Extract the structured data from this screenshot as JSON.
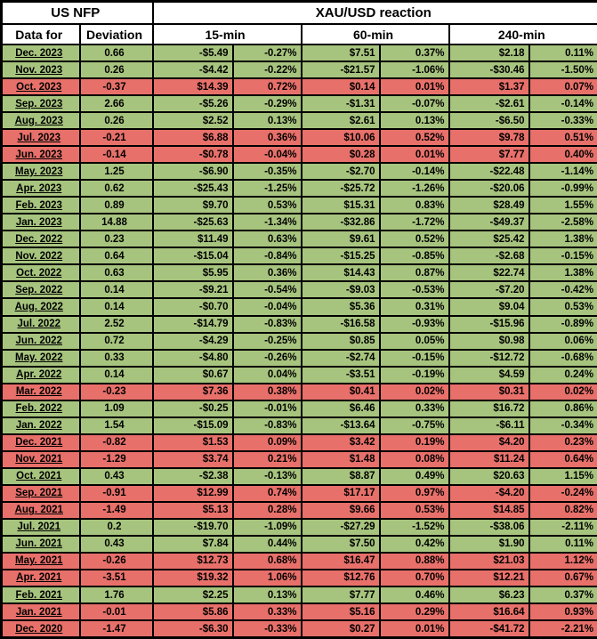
{
  "colors": {
    "positive_row": "#a7c47e",
    "negative_row": "#e8706a",
    "border": "#000000",
    "header_bg": "#ffffff",
    "text": "#000000"
  },
  "chart_data": {
    "type": "table",
    "title": "US NFP — XAU/USD reaction",
    "header": {
      "us_nfp": "US NFP",
      "reaction": "XAU/USD reaction",
      "data_for": "Data for",
      "deviation": "Deviation",
      "timeframes": [
        "15-min",
        "60-min",
        "240-min"
      ]
    },
    "row_color_rule": "negative deviation = red row, positive deviation = green row",
    "columns": [
      "Data for",
      "Deviation",
      "15-min $",
      "15-min %",
      "60-min $",
      "60-min %",
      "240-min $",
      "240-min %"
    ],
    "rows": [
      {
        "month": "Dec. 2023",
        "deviation": "0.66",
        "cells": [
          "-$5.49",
          "-0.27%",
          "$7.51",
          "0.37%",
          "$2.18",
          "0.11%"
        ]
      },
      {
        "month": "Nov. 2023",
        "deviation": "0.26",
        "cells": [
          "-$4.42",
          "-0.22%",
          "-$21.57",
          "-1.06%",
          "-$30.46",
          "-1.50%"
        ]
      },
      {
        "month": "Oct. 2023",
        "deviation": "-0.37",
        "cells": [
          "$14.39",
          "0.72%",
          "$0.14",
          "0.01%",
          "$1.37",
          "0.07%"
        ]
      },
      {
        "month": "Sep. 2023",
        "deviation": "2.66",
        "cells": [
          "-$5.26",
          "-0.29%",
          "-$1.31",
          "-0.07%",
          "-$2.61",
          "-0.14%"
        ]
      },
      {
        "month": "Aug. 2023",
        "deviation": "0.26",
        "cells": [
          "$2.52",
          "0.13%",
          "$2.61",
          "0.13%",
          "-$6.50",
          "-0.33%"
        ]
      },
      {
        "month": "Jul. 2023",
        "deviation": "-0.21",
        "cells": [
          "$6.88",
          "0.36%",
          "$10.06",
          "0.52%",
          "$9.78",
          "0.51%"
        ]
      },
      {
        "month": "Jun. 2023",
        "deviation": "-0.14",
        "cells": [
          "-$0.78",
          "-0.04%",
          "$0.28",
          "0.01%",
          "$7.77",
          "0.40%"
        ]
      },
      {
        "month": "May. 2023",
        "deviation": "1.25",
        "cells": [
          "-$6.90",
          "-0.35%",
          "-$2.70",
          "-0.14%",
          "-$22.48",
          "-1.14%"
        ]
      },
      {
        "month": "Apr. 2023",
        "deviation": "0.62",
        "cells": [
          "-$25.43",
          "-1.25%",
          "-$25.72",
          "-1.26%",
          "-$20.06",
          "-0.99%"
        ]
      },
      {
        "month": "Feb. 2023",
        "deviation": "0.89",
        "cells": [
          "$9.70",
          "0.53%",
          "$15.31",
          "0.83%",
          "$28.49",
          "1.55%"
        ]
      },
      {
        "month": "Jan. 2023",
        "deviation": "14.88",
        "cells": [
          "-$25.63",
          "-1.34%",
          "-$32.86",
          "-1.72%",
          "-$49.37",
          "-2.58%"
        ]
      },
      {
        "month": "Dec. 2022",
        "deviation": "0.23",
        "cells": [
          "$11.49",
          "0.63%",
          "$9.61",
          "0.52%",
          "$25.42",
          "1.38%"
        ]
      },
      {
        "month": "Nov. 2022",
        "deviation": "0.64",
        "cells": [
          "-$15.04",
          "-0.84%",
          "-$15.25",
          "-0.85%",
          "-$2.68",
          "-0.15%"
        ]
      },
      {
        "month": "Oct. 2022",
        "deviation": "0.63",
        "cells": [
          "$5.95",
          "0.36%",
          "$14.43",
          "0.87%",
          "$22.74",
          "1.38%"
        ]
      },
      {
        "month": "Sep. 2022",
        "deviation": "0.14",
        "cells": [
          "-$9.21",
          "-0.54%",
          "-$9.03",
          "-0.53%",
          "-$7.20",
          "-0.42%"
        ]
      },
      {
        "month": "Aug. 2022",
        "deviation": "0.14",
        "cells": [
          "-$0.70",
          "-0.04%",
          "$5.36",
          "0.31%",
          "$9.04",
          "0.53%"
        ]
      },
      {
        "month": "Jul. 2022",
        "deviation": "2.52",
        "cells": [
          "-$14.79",
          "-0.83%",
          "-$16.58",
          "-0.93%",
          "-$15.96",
          "-0.89%"
        ]
      },
      {
        "month": "Jun. 2022",
        "deviation": "0.72",
        "cells": [
          "-$4.29",
          "-0.25%",
          "$0.85",
          "0.05%",
          "$0.98",
          "0.06%"
        ]
      },
      {
        "month": "May. 2022",
        "deviation": "0.33",
        "cells": [
          "-$4.80",
          "-0.26%",
          "-$2.74",
          "-0.15%",
          "-$12.72",
          "-0.68%"
        ]
      },
      {
        "month": "Apr. 2022",
        "deviation": "0.14",
        "cells": [
          "$0.67",
          "0.04%",
          "-$3.51",
          "-0.19%",
          "$4.59",
          "0.24%"
        ]
      },
      {
        "month": "Mar. 2022",
        "deviation": "-0.23",
        "cells": [
          "$7.36",
          "0.38%",
          "$0.41",
          "0.02%",
          "$0.31",
          "0.02%"
        ]
      },
      {
        "month": "Feb. 2022",
        "deviation": "1.09",
        "cells": [
          "-$0.25",
          "-0.01%",
          "$6.46",
          "0.33%",
          "$16.72",
          "0.86%"
        ]
      },
      {
        "month": "Jan. 2022",
        "deviation": "1.54",
        "cells": [
          "-$15.09",
          "-0.83%",
          "-$13.64",
          "-0.75%",
          "-$6.11",
          "-0.34%"
        ]
      },
      {
        "month": "Dec. 2021",
        "deviation": "-0.82",
        "cells": [
          "$1.53",
          "0.09%",
          "$3.42",
          "0.19%",
          "$4.20",
          "0.23%"
        ]
      },
      {
        "month": "Nov. 2021",
        "deviation": "-1.29",
        "cells": [
          "$3.74",
          "0.21%",
          "$1.48",
          "0.08%",
          "$11.24",
          "0.64%"
        ]
      },
      {
        "month": "Oct. 2021",
        "deviation": "0.43",
        "cells": [
          "-$2.38",
          "-0.13%",
          "$8.87",
          "0.49%",
          "$20.63",
          "1.15%"
        ]
      },
      {
        "month": "Sep. 2021",
        "deviation": "-0.91",
        "cells": [
          "$12.99",
          "0.74%",
          "$17.17",
          "0.97%",
          "-$4.20",
          "-0.24%"
        ]
      },
      {
        "month": "Aug. 2021",
        "deviation": "-1.49",
        "cells": [
          "$5.13",
          "0.28%",
          "$9.66",
          "0.53%",
          "$14.85",
          "0.82%"
        ]
      },
      {
        "month": "Jul. 2021",
        "deviation": "0.2",
        "cells": [
          "-$19.70",
          "-1.09%",
          "-$27.29",
          "-1.52%",
          "-$38.06",
          "-2.11%"
        ]
      },
      {
        "month": "Jun. 2021",
        "deviation": "0.43",
        "cells": [
          "$7.84",
          "0.44%",
          "$7.50",
          "0.42%",
          "$1.90",
          "0.11%"
        ]
      },
      {
        "month": "May. 2021",
        "deviation": "-0.26",
        "cells": [
          "$12.73",
          "0.68%",
          "$16.47",
          "0.88%",
          "$21.03",
          "1.12%"
        ]
      },
      {
        "month": "Apr. 2021",
        "deviation": "-3.51",
        "cells": [
          "$19.32",
          "1.06%",
          "$12.76",
          "0.70%",
          "$12.21",
          "0.67%"
        ]
      },
      {
        "month": "Feb. 2021",
        "deviation": "1.76",
        "cells": [
          "$2.25",
          "0.13%",
          "$7.77",
          "0.46%",
          "$6.23",
          "0.37%"
        ]
      },
      {
        "month": "Jan. 2021",
        "deviation": "-0.01",
        "cells": [
          "$5.86",
          "0.33%",
          "$5.16",
          "0.29%",
          "$16.64",
          "0.93%"
        ]
      },
      {
        "month": "Dec. 2020",
        "deviation": "-1.47",
        "cells": [
          "-$6.30",
          "-0.33%",
          "$0.27",
          "0.01%",
          "-$41.72",
          "-2.21%"
        ]
      }
    ]
  }
}
